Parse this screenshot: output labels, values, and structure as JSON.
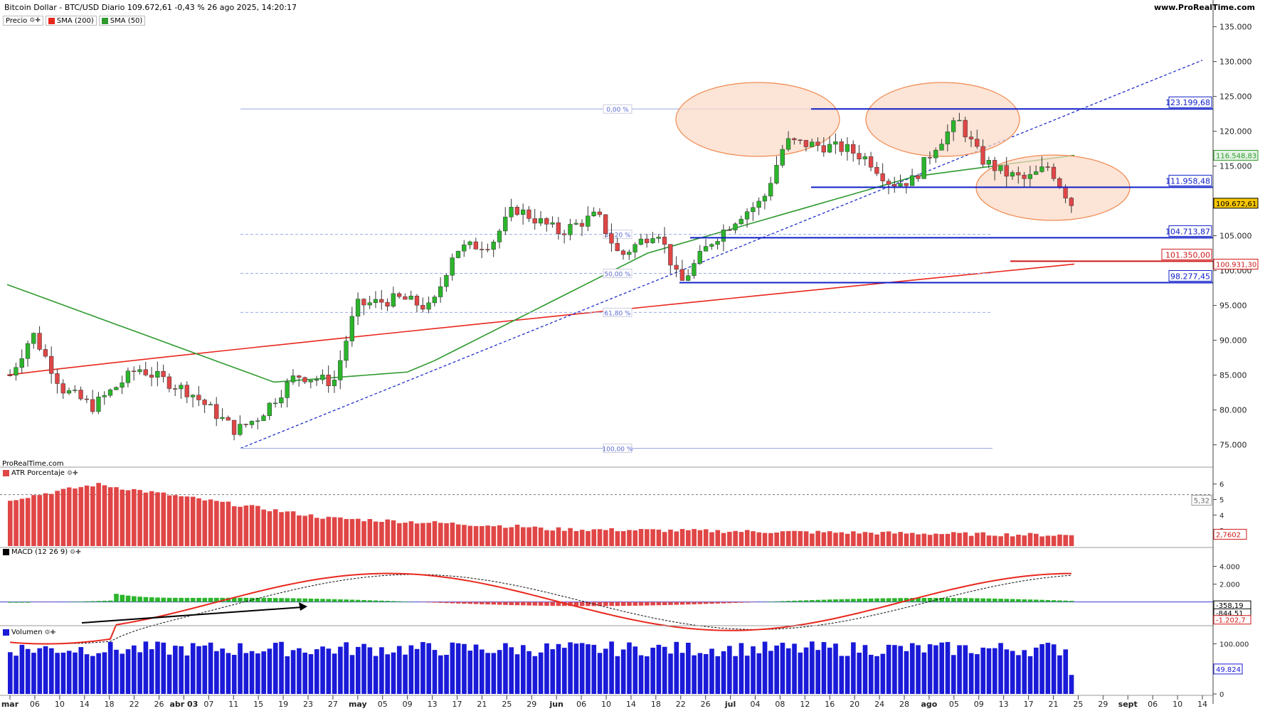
{
  "header": {
    "title": "Bitcoin Dollar - BTC/USD Diario 109.672,61 -0,43 % 26 ago 2025, 14:20:17",
    "site": "www.ProRealTime.com",
    "watermark": "ProRealTime.com"
  },
  "legends": {
    "price": "Precio",
    "sma200": "SMA (200)",
    "sma50": "SMA (50)",
    "atr": "ATR Porcentaje",
    "macd": "MACD (12 26 9)",
    "volume": "Volumen"
  },
  "colors": {
    "up": "#2bb52b",
    "down": "#e04646",
    "sma200": "#e8281e",
    "sma50": "#2e9a2e",
    "blue": "#1020c8",
    "ellipse_fill": "#fbd9c4",
    "ellipse_stroke": "#f08a50",
    "volume": "#1a1ad8"
  },
  "chart_data": [
    {
      "type": "candlestick",
      "title": "Bitcoin Dollar - BTC/USD Diario",
      "y_ticks": [
        "135.000",
        "130.000",
        "125.000",
        "120.000",
        "115.000",
        "110.000",
        "105.000",
        "100.000",
        "95.000",
        "90.000",
        "85.000",
        "80.000",
        "75.000"
      ],
      "ylim": [
        72000,
        137000
      ],
      "x_tick_labels": [
        "mar",
        "06",
        "10",
        "14",
        "18",
        "22",
        "26",
        "abr 03",
        "07",
        "11",
        "15",
        "19",
        "23",
        "27",
        "may",
        "05",
        "09",
        "13",
        "17",
        "21",
        "25",
        "29",
        "jun",
        "06",
        "10",
        "14",
        "18",
        "22",
        "26",
        "jul",
        "04",
        "08",
        "12",
        "16",
        "20",
        "24",
        "28",
        "ago",
        "05",
        "09",
        "13",
        "17",
        "21",
        "25",
        "29",
        "sept",
        "06",
        "10",
        "14"
      ],
      "fibonacci": [
        {
          "label": "0,00 %",
          "price": 123199.68
        },
        {
          "label": "38,20 %",
          "price": 105200
        },
        {
          "label": "50,00 %",
          "price": 99600
        },
        {
          "label": "61,80 %",
          "price": 94000
        },
        {
          "label": "100,00 %",
          "price": 74500
        }
      ],
      "levels": [
        {
          "label": "123.199,68",
          "price": 123199.68
        },
        {
          "label": "111.958,48",
          "price": 111958.48
        },
        {
          "label": "104.713,87",
          "price": 104713.87
        },
        {
          "label": "101.350,00",
          "price": 101350.0
        },
        {
          "label": "98.277,45",
          "price": 98277.45
        }
      ],
      "value_labels": {
        "sma50": "116.548,83",
        "last": "109.672,61",
        "sma200": "100.931,30"
      },
      "series": [
        {
          "name": "SMA (200)",
          "values": [
            85000,
            88000,
            92000,
            96000,
            98500,
            100931
          ]
        },
        {
          "name": "SMA (50)",
          "values": [
            98000,
            84000,
            84000,
            96000,
            105000,
            112000,
            116548
          ]
        }
      ]
    },
    {
      "type": "bar",
      "title": "ATR Porcentaje",
      "y_ticks": [
        "6",
        "5",
        "4",
        "3"
      ],
      "value_labels": [
        "5,32",
        "2,7602"
      ],
      "dashed_level": 5.32
    },
    {
      "type": "line",
      "title": "MACD (12 26 9)",
      "y_ticks": [
        "4.000",
        "2.000"
      ],
      "value_labels": [
        "-358,19",
        "-844,51",
        "-1.202,7"
      ]
    },
    {
      "type": "bar",
      "title": "Volumen",
      "y_ticks": [
        "100.000",
        "0"
      ],
      "value_labels": [
        "49.824"
      ]
    }
  ]
}
